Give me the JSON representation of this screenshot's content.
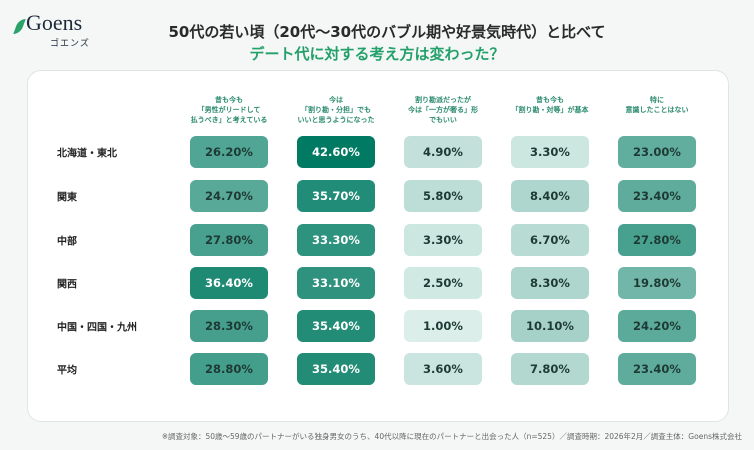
{
  "logo": {
    "name": "Goens",
    "kana": "ゴエンズ"
  },
  "title": {
    "line1": "50代の若い頃（20代〜30代のバブル期や好景気時代）と比べて",
    "line2": "デート代に対する考え方は変わった？"
  },
  "chart_data": {
    "type": "heatmap",
    "columns": [
      "昔も今も\n「男性がリードして\n払うべき」と考えている",
      "今は\n「割り勘・分担」でも\nいいと思うようになった",
      "割り勘派だったが\n今は「一方が奢る」形\nでもいい",
      "昔も今も\n「割り勘・対等」が基本",
      "特に\n意識したことはない"
    ],
    "rows": [
      "北海道・東北",
      "関東",
      "中部",
      "関西",
      "中国・四国・九州",
      "平均"
    ],
    "values": [
      [
        26.2,
        42.6,
        4.9,
        3.3,
        23.0
      ],
      [
        24.7,
        35.7,
        5.8,
        8.4,
        23.4
      ],
      [
        27.8,
        33.3,
        3.3,
        6.7,
        27.8
      ],
      [
        36.4,
        33.1,
        2.5,
        8.3,
        19.8
      ],
      [
        28.3,
        35.4,
        1.0,
        10.1,
        24.2
      ],
      [
        28.8,
        35.4,
        3.6,
        7.8,
        23.4
      ]
    ],
    "labels": [
      [
        "26.20%",
        "42.60%",
        "4.90%",
        "3.30%",
        "23.00%"
      ],
      [
        "24.70%",
        "35.70%",
        "5.80%",
        "8.40%",
        "23.40%"
      ],
      [
        "27.80%",
        "33.30%",
        "3.30%",
        "6.70%",
        "27.80%"
      ],
      [
        "36.40%",
        "33.10%",
        "2.50%",
        "8.30%",
        "19.80%"
      ],
      [
        "28.30%",
        "35.40%",
        "1.00%",
        "10.10%",
        "24.20%"
      ],
      [
        "28.80%",
        "35.40%",
        "3.60%",
        "7.80%",
        "23.40%"
      ]
    ],
    "unit": "%",
    "color_low": "#e3f2ee",
    "color_high": "#007a62"
  },
  "footnote": "※調査対象：50歳〜59歳のパートナーがいる独身男女のうち、40代以降に現在のパートナーと出会った人（n=525）／調査時期：2026年2月／調査主体：Goens株式会社"
}
